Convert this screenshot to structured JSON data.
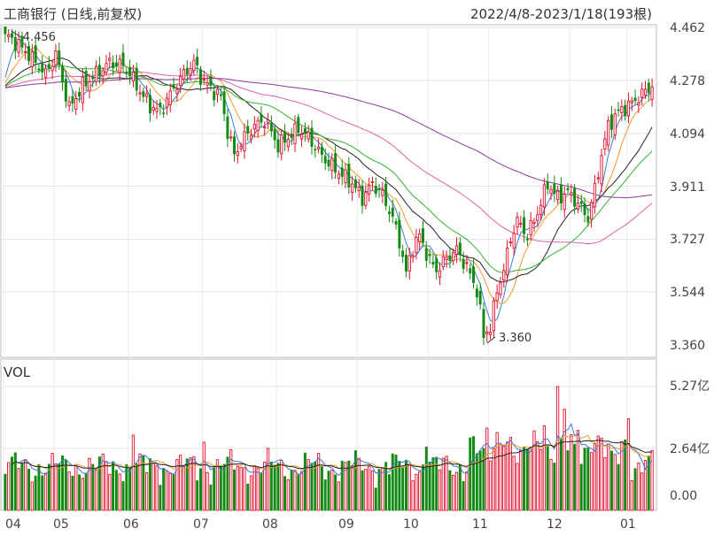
{
  "header": {
    "title": "工商银行 (日线,前复权)",
    "range": "2022/4/8-2023/1/18(193根)"
  },
  "volume_label": "VOL",
  "chart_data": [
    {
      "type": "candlestick",
      "name": "price",
      "ylim": [
        3.36,
        4.462
      ],
      "y_ticks": [
        "4.462",
        "4.278",
        "4.094",
        "3.911",
        "3.727",
        "3.544",
        "3.360"
      ],
      "x_ticks": [
        "04",
        "05",
        "06",
        "07",
        "08",
        "09",
        "10",
        "11",
        "12",
        "01"
      ],
      "annotations": [
        {
          "label": "4.456",
          "value": 4.456,
          "kind": "high"
        },
        {
          "label": "3.360",
          "value": 3.36,
          "kind": "low"
        }
      ],
      "colors": {
        "up": "#e0102c",
        "down": "#138a13"
      },
      "ma_colors": [
        "#3b7bd8",
        "#f29a2e",
        "#222222",
        "#2eb52e",
        "#e060a8",
        "#8a3a9a"
      ]
    },
    {
      "type": "bar",
      "name": "volume",
      "unit": "亿",
      "y_ticks": [
        "5.27亿",
        "2.64亿",
        "0.00"
      ],
      "ylim": [
        0,
        5.27
      ]
    }
  ]
}
